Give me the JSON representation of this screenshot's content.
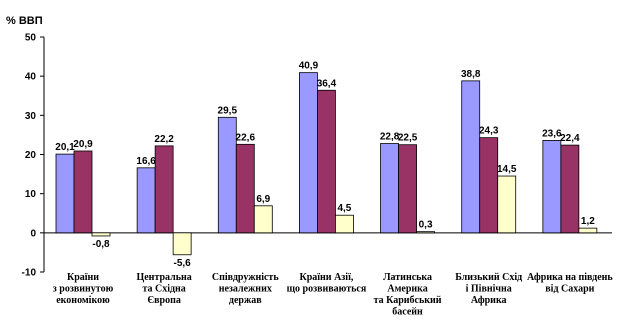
{
  "chart_data": {
    "type": "bar",
    "ylabel": "% ВВП",
    "ylim": [
      -10,
      50
    ],
    "yticks": [
      -10,
      0,
      10,
      20,
      30,
      40,
      50
    ],
    "grid": false,
    "categories": [
      [
        "Країни",
        "з розвинутою",
        "економікою"
      ],
      [
        "Центральна",
        "та Східна",
        "Європа"
      ],
      [
        "Співдружність",
        "незалежних",
        "держав"
      ],
      [
        "Країни Азії,",
        "що розвиваються"
      ],
      [
        "Латинська",
        "Америка",
        "та Карибський",
        "басейн"
      ],
      [
        "Близький Схід",
        "і Північна",
        "Африка"
      ],
      [
        "Африка на південь",
        "від Сахари"
      ]
    ],
    "series": [
      {
        "values": [
          20.1,
          16.6,
          29.5,
          40.9,
          22.8,
          38.8,
          23.6
        ],
        "labels": [
          "20,1",
          "16,6",
          "29,5",
          "40,9",
          "22,8",
          "38,8",
          "23,6"
        ],
        "color": "#9999ff"
      },
      {
        "values": [
          20.9,
          22.2,
          22.6,
          36.4,
          22.5,
          24.3,
          22.4
        ],
        "labels": [
          "20,9",
          "22,2",
          "22,6",
          "36,4",
          "22,5",
          "24,3",
          "22,4"
        ],
        "color": "#993366"
      },
      {
        "values": [
          -0.8,
          -5.6,
          6.9,
          4.5,
          0.3,
          14.5,
          1.2
        ],
        "labels": [
          "-0,8",
          "-5,6",
          "6,9",
          "4,5",
          "0,3",
          "14,5",
          "1,2"
        ],
        "color": "#ffffcc"
      }
    ]
  }
}
